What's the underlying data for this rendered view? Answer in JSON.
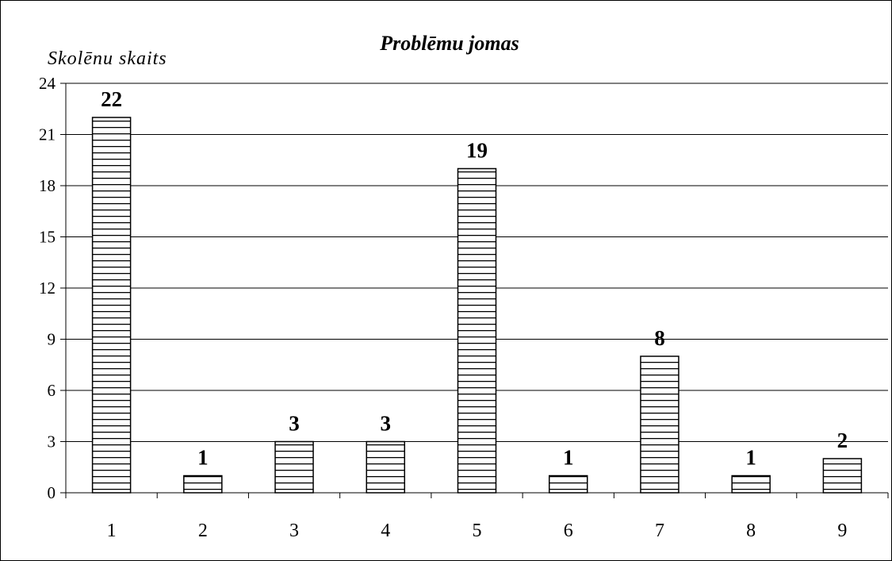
{
  "chart_data": {
    "type": "bar",
    "title": "Problēmu jomas",
    "ylabel": "Skolēnu skaits",
    "xlabel": "",
    "categories": [
      "1",
      "2",
      "3",
      "4",
      "5",
      "6",
      "7",
      "8",
      "9"
    ],
    "values": [
      22,
      1,
      3,
      3,
      19,
      1,
      8,
      1,
      2
    ],
    "data_labels": [
      "22",
      "1",
      "3",
      "3",
      "19",
      "1",
      "8",
      "1",
      "2"
    ],
    "ylim": [
      0,
      24
    ],
    "yticks": [
      0,
      3,
      6,
      9,
      12,
      15,
      18,
      21,
      24
    ],
    "grid": "horizontal",
    "bar_fill": "horizontal-stripes",
    "colors": {
      "bar_stroke": "#000000",
      "bar_fill": "#ffffff",
      "grid": "#000000"
    }
  }
}
